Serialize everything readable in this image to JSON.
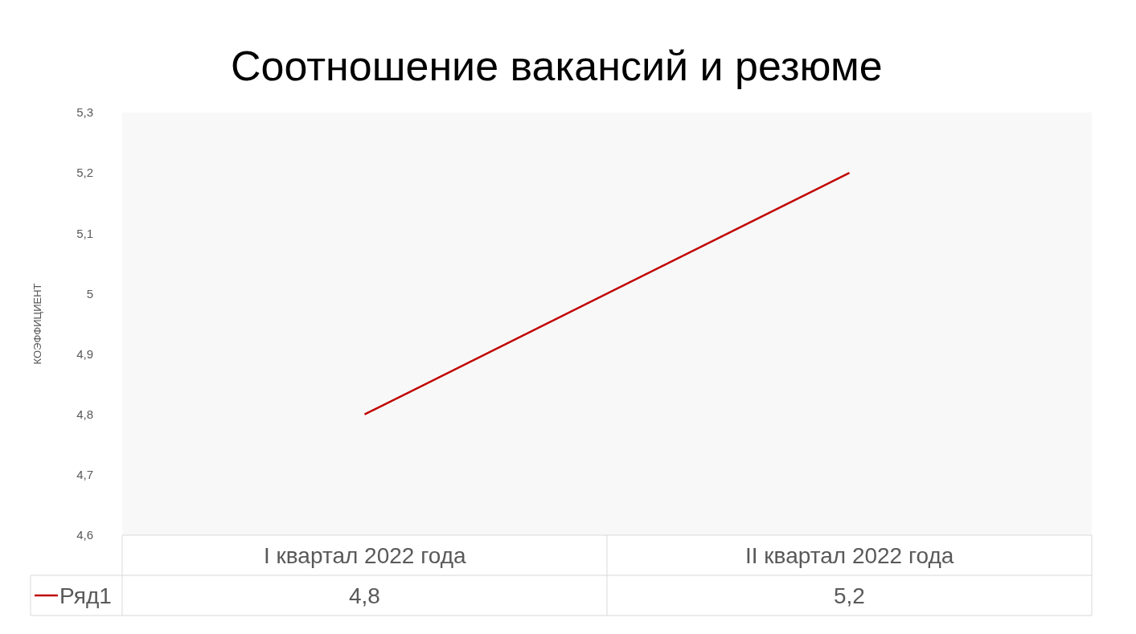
{
  "chart_data": {
    "type": "line",
    "title": "Соотношение вакансий и резюме",
    "ylabel": "КОЭФФИЦИЕНТ",
    "categories": [
      "I квартал 2022 года",
      "II квартал 2022 года"
    ],
    "series": [
      {
        "name": "Ряд1",
        "color": "#c00000",
        "values": [
          4.8,
          5.2
        ],
        "value_labels": [
          "4,8",
          "5,2"
        ]
      }
    ],
    "ylim": [
      4.6,
      5.3
    ],
    "yticks": [
      {
        "value": 4.6,
        "label": "4,6"
      },
      {
        "value": 4.7,
        "label": "4,7"
      },
      {
        "value": 4.8,
        "label": "4,8"
      },
      {
        "value": 4.9,
        "label": "4,9"
      },
      {
        "value": 5,
        "label": "5"
      },
      {
        "value": 5.1,
        "label": "5,1"
      },
      {
        "value": 5.2,
        "label": "5,2"
      },
      {
        "value": 5.3,
        "label": "5,3"
      }
    ],
    "marker": "none",
    "line_style": "solid"
  }
}
